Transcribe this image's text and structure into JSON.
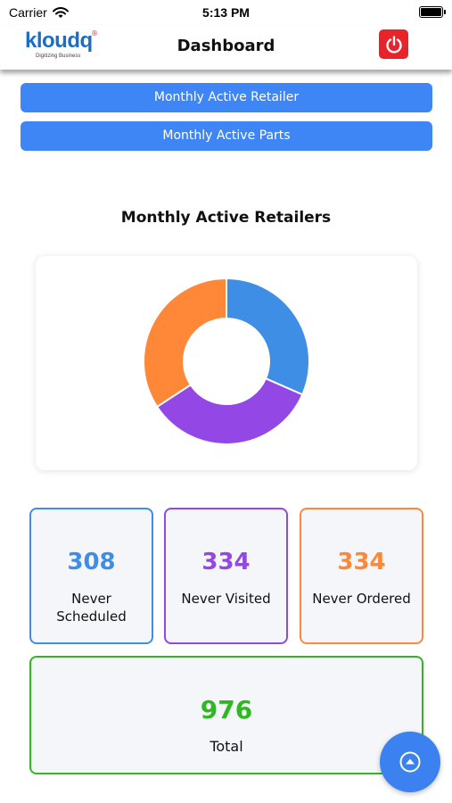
{
  "status_bar": {
    "carrier": "Carrier",
    "time": "5:13 PM"
  },
  "header": {
    "logo_text": "kloudq",
    "logo_tagline": "Digitizing Business",
    "title": "Dashboard",
    "power_color": "#e8232a"
  },
  "tabs": [
    {
      "label": "Monthly Active Retailer"
    },
    {
      "label": "Monthly Active Parts"
    }
  ],
  "chart_data": {
    "type": "pie",
    "title": "Monthly Active Retailers",
    "donut": true,
    "categories": [
      "Never Scheduled",
      "Never Visited",
      "Never Ordered"
    ],
    "values": [
      308,
      334,
      334
    ],
    "colors": [
      "#3f8ee6",
      "#9348e6",
      "#ff8838"
    ]
  },
  "stats": [
    {
      "value": "308",
      "label": "Never Scheduled",
      "color": "#3f8ee6"
    },
    {
      "value": "334",
      "label": "Never Visited",
      "color": "#9348e6"
    },
    {
      "value": "334",
      "label": "Never Ordered",
      "color": "#ff8838"
    }
  ],
  "total": {
    "value": "976",
    "label": "Total",
    "color": "#2fb821"
  },
  "icons": {
    "wifi": "wifi-icon",
    "battery": "battery-icon",
    "power": "power-icon",
    "fab": "chevron-up-circle-icon"
  }
}
